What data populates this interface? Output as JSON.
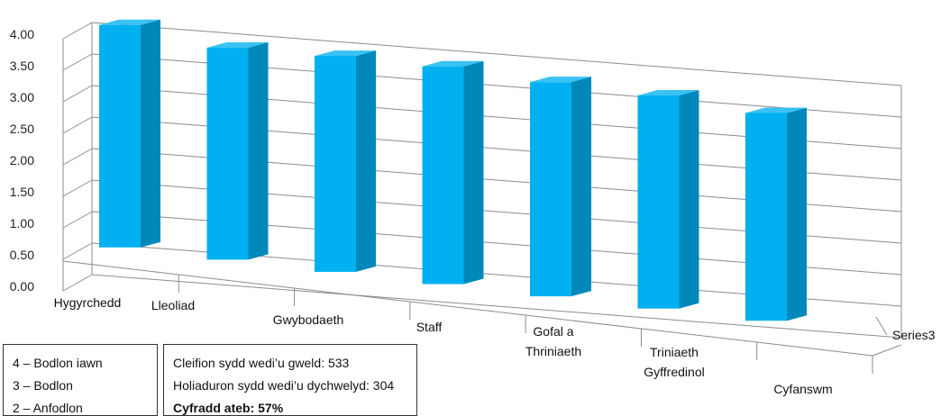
{
  "chart_data": {
    "type": "bar",
    "categories": [
      "Hygyrchedd",
      "Lleoliad",
      "Gwybodaeth",
      "Staff",
      "Gofal a Thriniaeth",
      "Triniaeth Gyffredinol",
      "Cyfanswm"
    ],
    "categories_lines": [
      [
        "Hygyrchedd"
      ],
      [
        "Lleoliad"
      ],
      [
        "Gwybodaeth"
      ],
      [
        "Staff"
      ],
      [
        "Gofal a",
        "Thriniaeth"
      ],
      [
        "Triniaeth",
        "Gyffredinol"
      ],
      [
        "Cyfanswm"
      ]
    ],
    "series": [
      {
        "name": "Series3",
        "values": [
          3.8,
          3.62,
          3.69,
          3.72,
          3.66,
          3.64,
          3.55
        ]
      }
    ],
    "ylim": [
      0,
      4
    ],
    "yticks": [
      "0.00",
      "0.50",
      "1.00",
      "1.50",
      "2.00",
      "2.50",
      "3.00",
      "3.50",
      "4.00"
    ],
    "depth_axis_label": "Series3",
    "chart_style": "3d-column",
    "grid": true,
    "colors": {
      "front": "#00b0f0",
      "side": "#0088bb",
      "top": "#39c2f3",
      "grid": "#8c8c8c"
    }
  },
  "scale_legend": {
    "lines": [
      "4 – Bodlon iawn",
      "3 – Bodlon",
      "2 – Anfodlon"
    ]
  },
  "stats": {
    "seen": "Cleifion sydd wedi’u gweld: 533",
    "returned": "Holiaduron sydd wedi’u dychwelyd: 304",
    "rate": "Cyfradd ateb: 57%"
  }
}
